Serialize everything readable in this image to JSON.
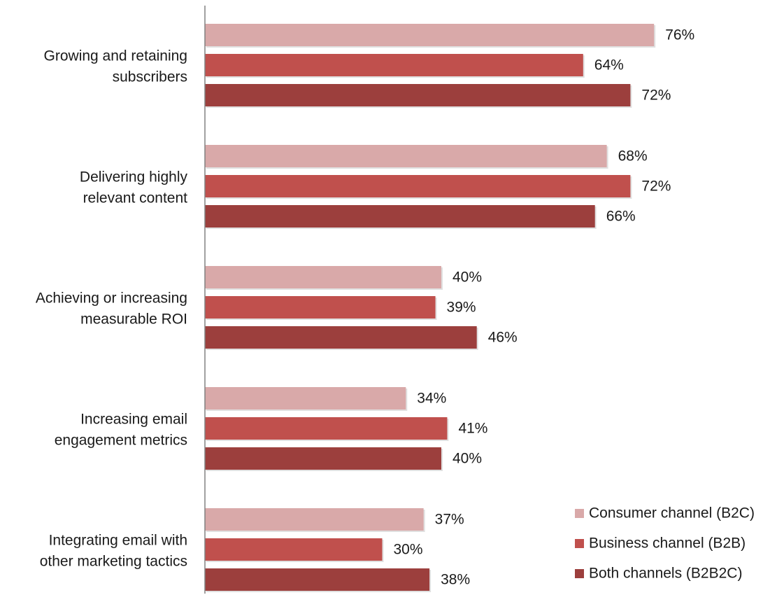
{
  "chart_data": {
    "type": "bar",
    "orientation": "horizontal",
    "categories": [
      [
        "Growing and retaining",
        "subscribers"
      ],
      [
        "Delivering highly",
        "relevant content"
      ],
      [
        "Achieving or increasing",
        "measurable ROI"
      ],
      [
        "Increasing email",
        "engagement metrics"
      ],
      [
        "Integrating email with",
        "other marketing tactics"
      ]
    ],
    "series": [
      {
        "name": "Consumer channel (B2C)",
        "color": "#d9a9a9",
        "values": [
          76,
          68,
          40,
          34,
          37
        ]
      },
      {
        "name": "Business channel (B2B)",
        "color": "#c0504d",
        "values": [
          64,
          72,
          39,
          41,
          30
        ]
      },
      {
        "name": "Both channels (B2B2C)",
        "color": "#9c3f3d",
        "values": [
          72,
          66,
          46,
          40,
          38
        ]
      }
    ],
    "value_suffix": "%",
    "xlim": [
      0,
      80
    ],
    "grid": false,
    "legend_position": "bottom-right"
  }
}
